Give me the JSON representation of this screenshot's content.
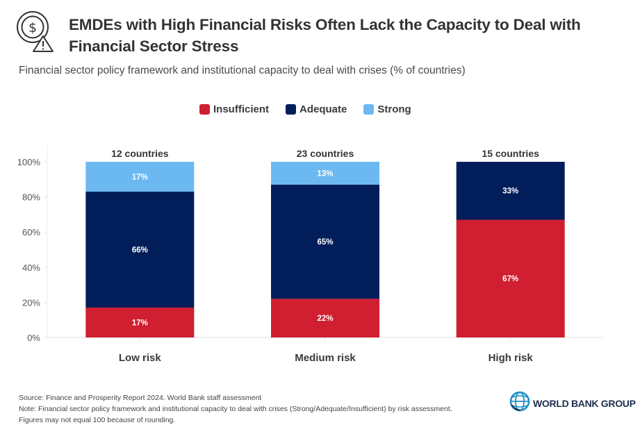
{
  "header": {
    "icon": "dollar-coin-warning-icon",
    "title": "EMDEs with High Financial Risks Often Lack the Capacity to Deal with Financial Sector Stress",
    "subtitle": "Financial sector policy framework and institutional capacity to deal with crises (% of countries)"
  },
  "colors": {
    "insufficient": "#cf1f31",
    "adequate": "#021e5a",
    "strong": "#6cb9f1"
  },
  "chart_data": {
    "type": "bar",
    "stacked": true,
    "title": "EMDEs with High Financial Risks Often Lack the Capacity to Deal with Financial Sector Stress",
    "subtitle": "Financial sector policy framework and institutional capacity to deal with crises (% of countries)",
    "categories": [
      "Low risk",
      "Medium risk",
      "High risk"
    ],
    "category_annotations": [
      "12 countries",
      "23 countries",
      "15 countries"
    ],
    "series": [
      {
        "name": "Insufficient",
        "color": "#cf1f31",
        "values": [
          17,
          22,
          67
        ],
        "labels": [
          "17%",
          "22%",
          "67%"
        ]
      },
      {
        "name": "Adequate",
        "color": "#021e5a",
        "values": [
          66,
          65,
          33
        ],
        "labels": [
          "66%",
          "65%",
          "33%"
        ]
      },
      {
        "name": "Strong",
        "color": "#6cb9f1",
        "values": [
          17,
          13,
          0
        ],
        "labels": [
          "17%",
          "13%",
          ""
        ]
      }
    ],
    "xlabel": "",
    "ylabel": "",
    "ylim": [
      0,
      100
    ],
    "yticks": [
      0,
      20,
      40,
      60,
      80,
      100
    ],
    "ytick_labels": [
      "0%",
      "20%",
      "40%",
      "60%",
      "80%",
      "100%"
    ],
    "grid": false,
    "legend": {
      "placement": "top-center",
      "entries": [
        "Insufficient",
        "Adequate",
        "Strong"
      ]
    }
  },
  "footer": {
    "source": "Source: Finance and Prosperity Report 2024. World Bank staff assessment",
    "note": "Note: Financial sector policy framework and institutional capacity to deal with crises (Strong/Adequate/Insufficient) by risk assessment.",
    "note2": "Figures may not equal 100 because of rounding."
  },
  "logo": {
    "icon": "globe-icon",
    "text": "WORLD BANK GROUP"
  }
}
